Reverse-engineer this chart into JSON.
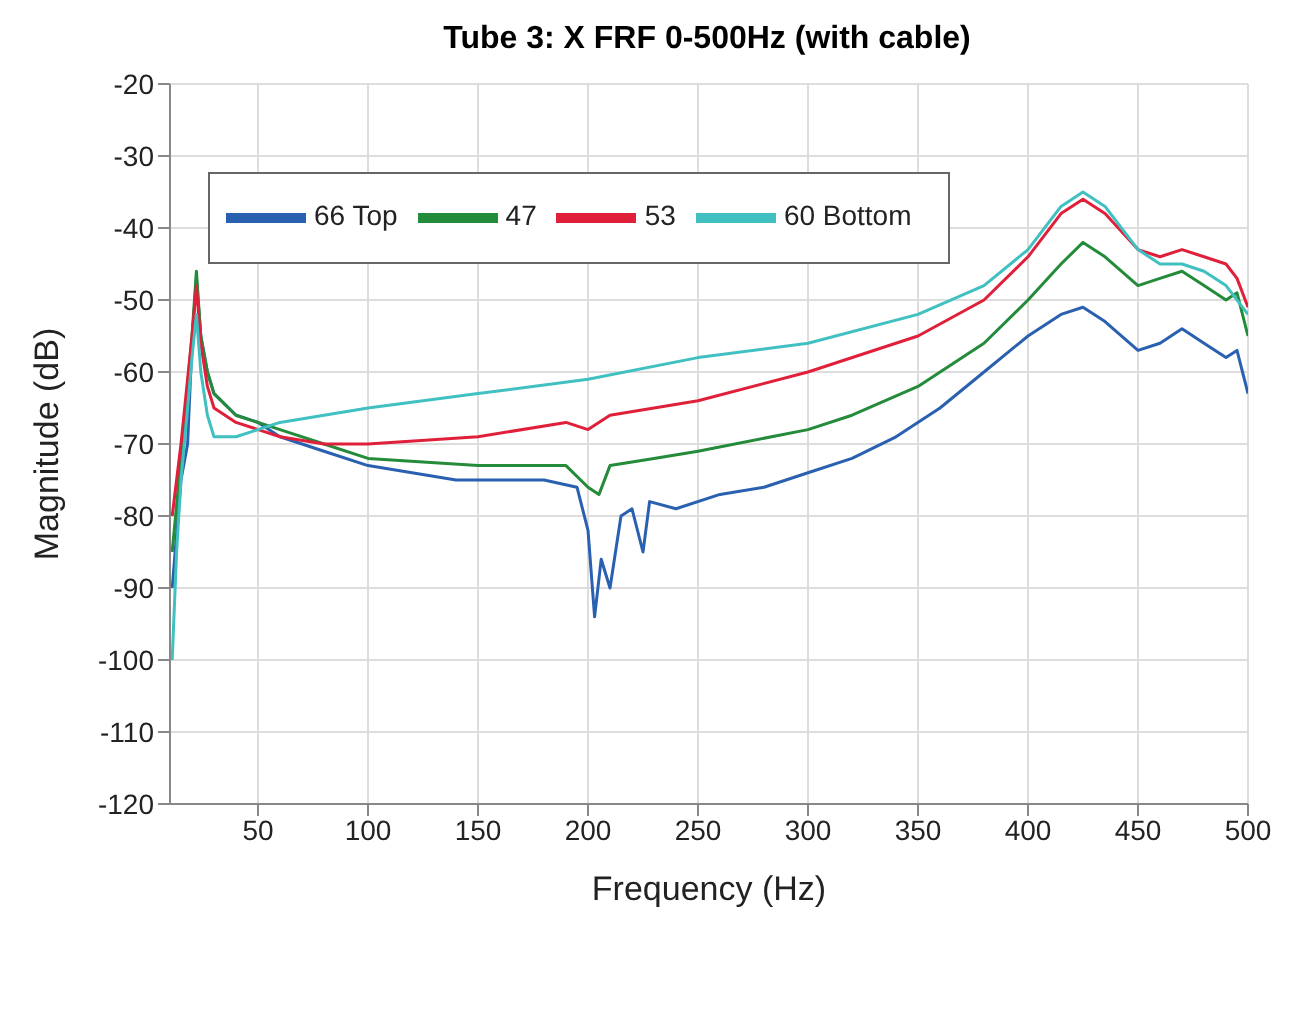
{
  "chart_data": {
    "type": "line",
    "title": "Tube 3: X FRF 0-500Hz (with cable)",
    "xlabel": "Frequency (Hz)",
    "ylabel": "Magnitude (dB)",
    "xlim": [
      10,
      500
    ],
    "xticks": [
      50,
      100,
      150,
      200,
      250,
      300,
      350,
      400,
      450,
      500
    ],
    "ylim": [
      -120,
      -20
    ],
    "yticks": [
      -120,
      -110,
      -100,
      -90,
      -80,
      -70,
      -60,
      -50,
      -40,
      -30,
      -20
    ],
    "grid": true,
    "legend": "top left",
    "marker": "none",
    "line_style": "solid",
    "series": [
      {
        "name": "66 Top",
        "color": "#2a60b0",
        "x": [
          11,
          15,
          18,
          20,
          22,
          24,
          27,
          30,
          40,
          50,
          60,
          80,
          100,
          120,
          140,
          160,
          180,
          195,
          200,
          203,
          206,
          210,
          215,
          220,
          225,
          228,
          240,
          260,
          280,
          300,
          320,
          340,
          360,
          380,
          400,
          415,
          425,
          435,
          450,
          460,
          470,
          480,
          490,
          495,
          500
        ],
        "values": [
          -90,
          -75,
          -70,
          -56,
          -47,
          -55,
          -60,
          -63,
          -66,
          -67,
          -69,
          -71,
          -73,
          -74,
          -75,
          -75,
          -75,
          -76,
          -82,
          -94,
          -86,
          -90,
          -80,
          -79,
          -85,
          -78,
          -79,
          -77,
          -76,
          -74,
          -72,
          -69,
          -65,
          -60,
          -55,
          -52,
          -51,
          -53,
          -57,
          -56,
          -54,
          -56,
          -58,
          -57,
          -63
        ]
      },
      {
        "name": "47",
        "color": "#238b3a",
        "x": [
          11,
          15,
          20,
          22,
          24,
          27,
          30,
          40,
          60,
          80,
          100,
          150,
          190,
          200,
          205,
          210,
          230,
          250,
          300,
          320,
          350,
          380,
          400,
          415,
          425,
          435,
          450,
          460,
          470,
          480,
          490,
          495,
          500
        ],
        "values": [
          -85,
          -72,
          -55,
          -46,
          -55,
          -60,
          -63,
          -66,
          -68,
          -70,
          -72,
          -73,
          -73,
          -76,
          -77,
          -73,
          -72,
          -71,
          -68,
          -66,
          -62,
          -56,
          -50,
          -45,
          -42,
          -44,
          -48,
          -47,
          -46,
          -48,
          -50,
          -49,
          -55
        ]
      },
      {
        "name": "53",
        "color": "#e0203a",
        "x": [
          11,
          15,
          20,
          22,
          24,
          27,
          30,
          40,
          60,
          80,
          100,
          150,
          190,
          200,
          210,
          250,
          300,
          350,
          380,
          400,
          415,
          425,
          435,
          450,
          460,
          470,
          480,
          490,
          495,
          500
        ],
        "values": [
          -80,
          -70,
          -55,
          -48,
          -56,
          -62,
          -65,
          -67,
          -69,
          -70,
          -70,
          -69,
          -67,
          -68,
          -66,
          -64,
          -60,
          -55,
          -50,
          -44,
          -38,
          -36,
          -38,
          -43,
          -44,
          -43,
          -44,
          -45,
          -47,
          -51
        ]
      },
      {
        "name": "60 Bottom",
        "color": "#40c0c0",
        "x": [
          11,
          13,
          15,
          18,
          20,
          22,
          24,
          27,
          30,
          40,
          60,
          80,
          100,
          150,
          200,
          250,
          300,
          350,
          380,
          400,
          415,
          425,
          435,
          450,
          460,
          470,
          480,
          490,
          500
        ],
        "values": [
          -100,
          -85,
          -75,
          -65,
          -58,
          -52,
          -60,
          -66,
          -69,
          -69,
          -67,
          -66,
          -65,
          -63,
          -61,
          -58,
          -56,
          -52,
          -48,
          -43,
          -37,
          -35,
          -37,
          -43,
          -45,
          -45,
          -46,
          -48,
          -52
        ]
      }
    ]
  }
}
